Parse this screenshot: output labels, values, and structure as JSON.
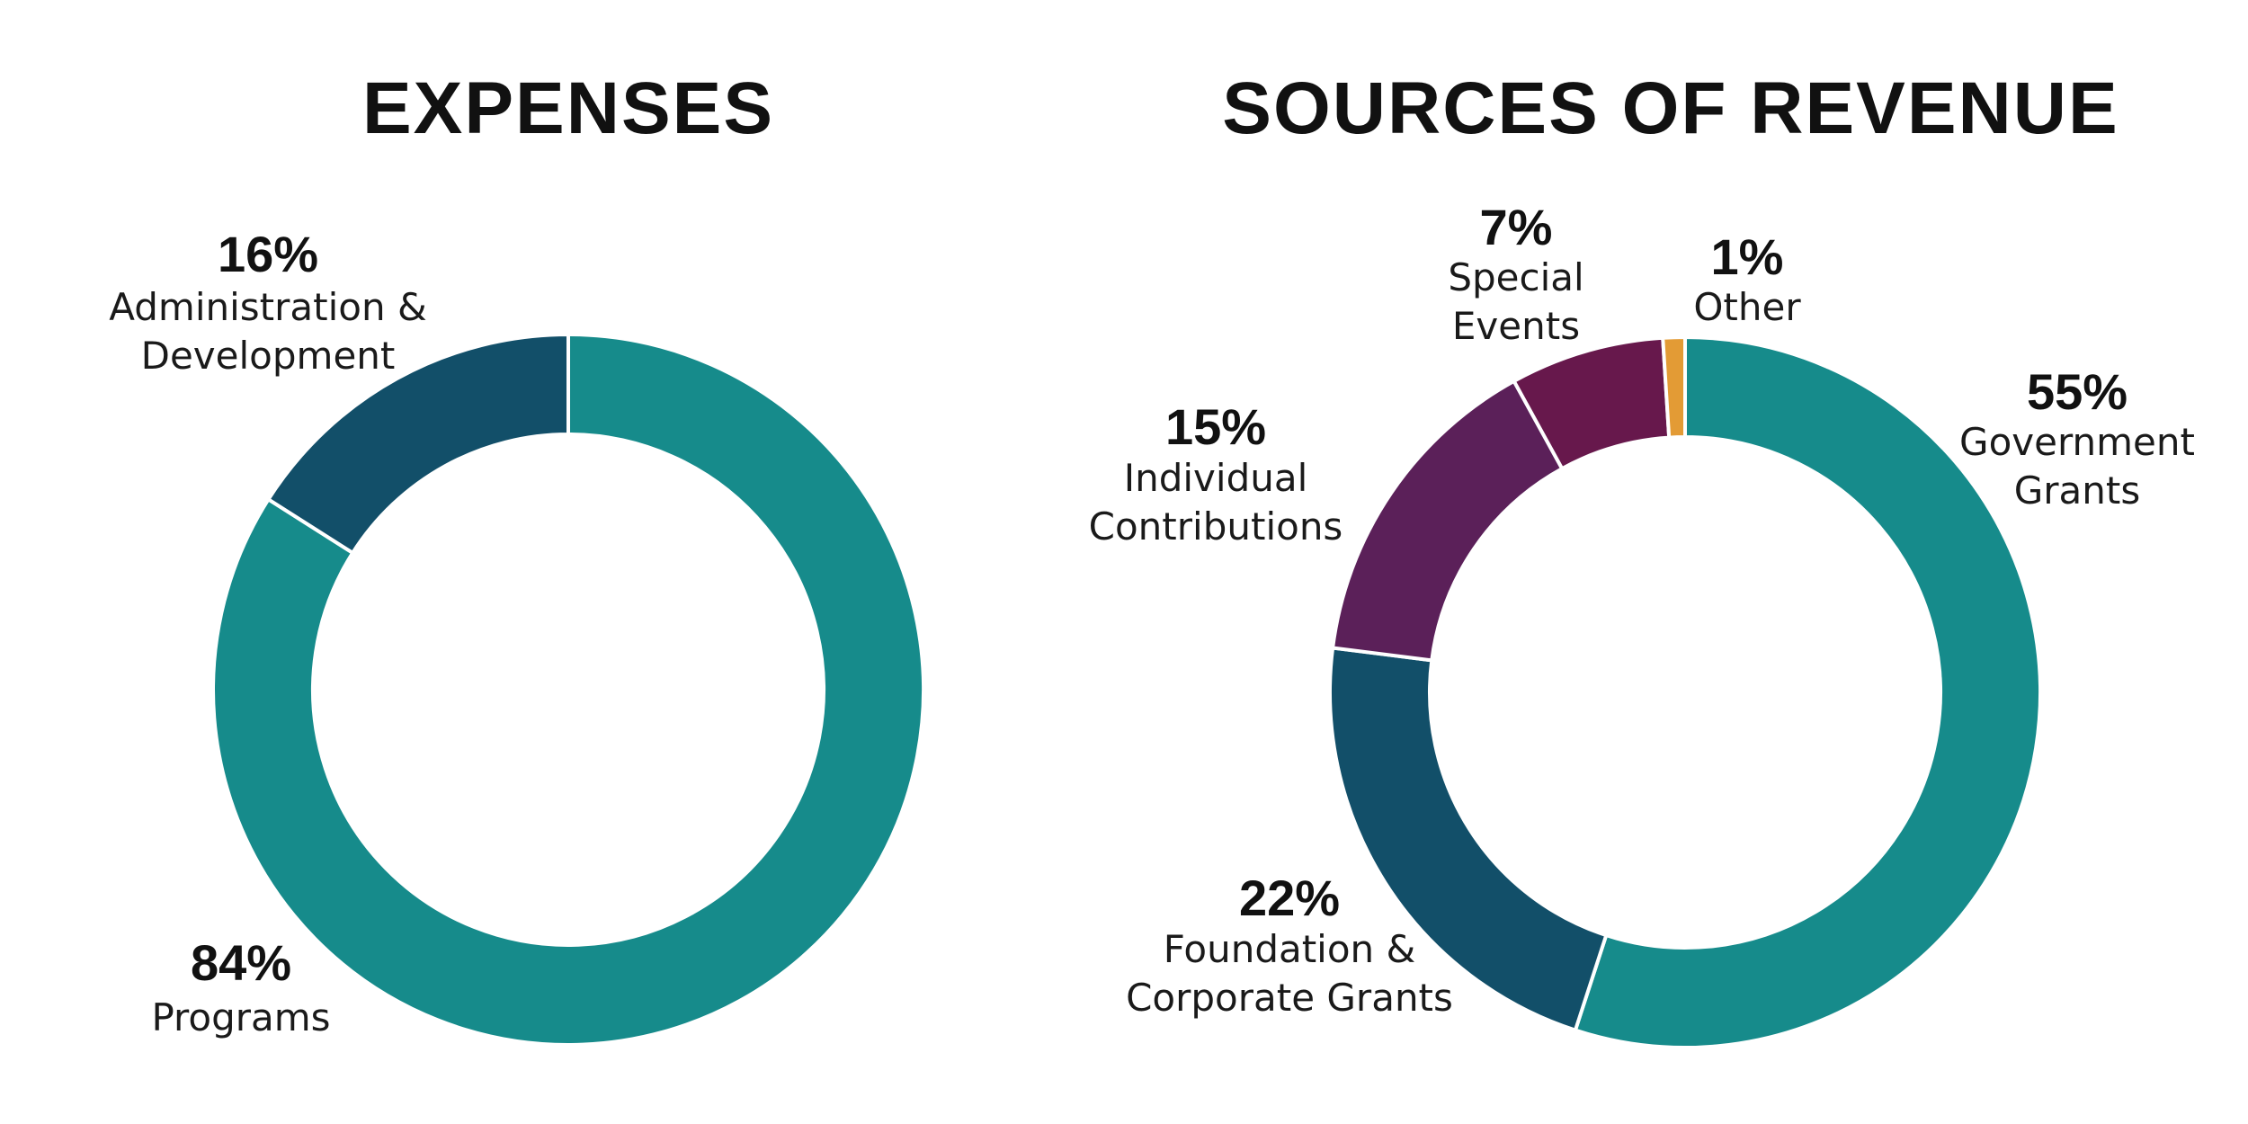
{
  "chart_data": [
    {
      "type": "pie",
      "title": "EXPENSES",
      "categories": [
        "Programs",
        "Administration & Development"
      ],
      "values": [
        84,
        16
      ],
      "labels": [
        {
          "pct": "84%",
          "lines": [
            "Programs"
          ]
        },
        {
          "pct": "16%",
          "lines": [
            "Administration &",
            "Development"
          ]
        }
      ],
      "colors": [
        "#168b8b",
        "#124f69"
      ],
      "style": "donut",
      "legend": "none"
    },
    {
      "type": "pie",
      "title": "SOURCES OF REVENUE",
      "categories": [
        "Government Grants",
        "Foundation & Corporate Grants",
        "Individual Contributions",
        "Special Events",
        "Other"
      ],
      "values": [
        55,
        22,
        15,
        7,
        1
      ],
      "labels": [
        {
          "pct": "55%",
          "lines": [
            "Government",
            "Grants"
          ]
        },
        {
          "pct": "22%",
          "lines": [
            "Foundation &",
            "Corporate Grants"
          ]
        },
        {
          "pct": "15%",
          "lines": [
            "Individual",
            "Contributions"
          ]
        },
        {
          "pct": "7%",
          "lines": [
            "Special",
            "Events"
          ]
        },
        {
          "pct": "1%",
          "lines": [
            "Other"
          ]
        }
      ],
      "colors": [
        "#168b8b",
        "#124f69",
        "#5b2059",
        "#67184c",
        "#e39b35"
      ],
      "style": "donut",
      "legend": "none"
    }
  ]
}
